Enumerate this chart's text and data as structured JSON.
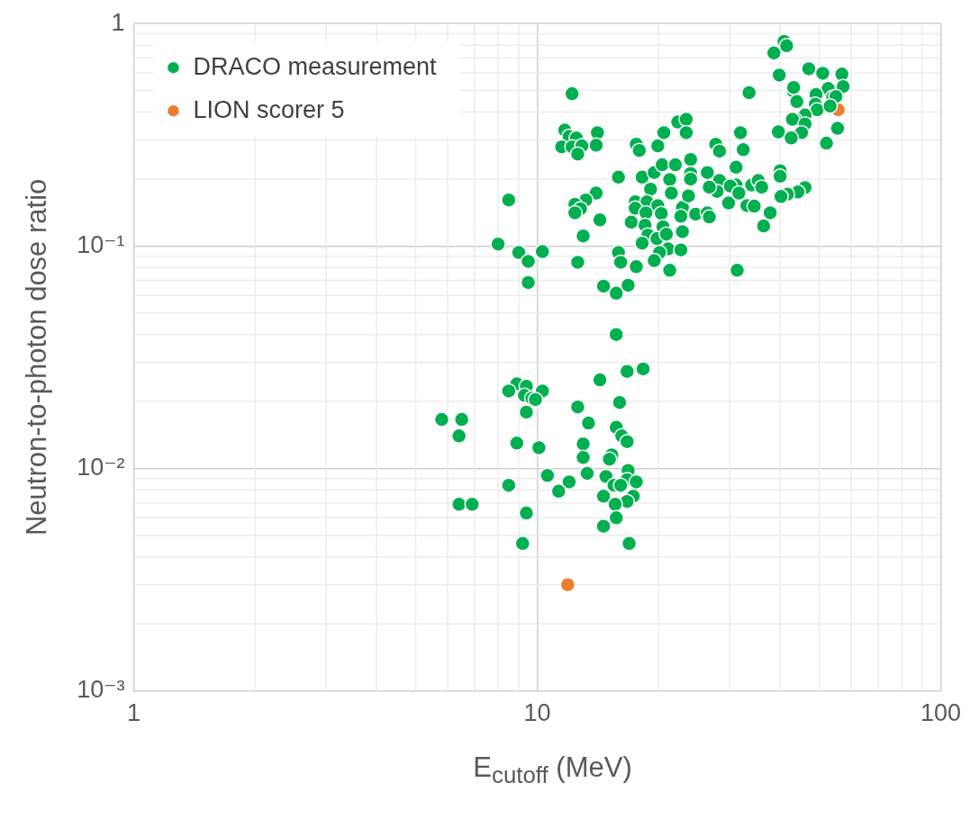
{
  "chart_data": {
    "type": "scatter",
    "xlabel": "E$_{cutoff}$ (MeV)",
    "ylabel": "Neutron-to-photon dose ratio",
    "log": "xy",
    "grid": true,
    "legend": "top left",
    "marker": "circle",
    "xlim": [
      1,
      100
    ],
    "xticks": [
      1,
      10,
      100
    ],
    "ylim": [
      0.001,
      1
    ],
    "yticks": [
      {
        "value": 0.001,
        "label": "10⁻³"
      },
      {
        "value": 0.01,
        "label": "10⁻²"
      },
      {
        "value": 0.1,
        "label": "10⁻¹"
      },
      1
    ],
    "series": [
      {
        "name": "DRACO measurement",
        "color": "#00b050",
        "x": [
          15.7,
          16.7,
          18.3,
          14.3,
          8.9,
          9.4,
          8.5,
          10.3,
          9.3,
          9.7,
          9.9,
          9.4,
          5.8,
          6.5,
          6.4,
          12.6,
          16.0,
          13.4,
          15.7,
          16.2,
          16.7,
          8.9,
          10.1,
          13.0,
          13.0,
          15.3,
          15.1,
          13.3,
          10.6,
          14.8,
          16.8,
          16.7,
          17.6,
          15.5,
          16.1,
          8.5,
          12.0,
          11.3,
          14.6,
          17.3,
          16.7,
          15.6,
          6.4,
          6.9,
          9.4,
          15.7,
          14.6,
          9.2,
          16.9,
          12.2,
          11.7,
          12.0,
          12.5,
          11.5,
          12.2,
          12.9,
          12.6,
          14.1,
          14.0,
          17.6,
          17.9,
          19.9,
          20.6,
          22.3,
          23.4,
          23.4,
          24.0,
          15.9,
          18.2,
          19.5,
          20.4,
          22.0,
          21.3,
          24.0,
          24.0,
          19.1,
          21.5,
          23.8,
          8.5,
          14.0,
          13.2,
          12.4,
          12.8,
          12.4,
          14.3,
          13.0,
          17.5,
          18.7,
          19.9,
          17.5,
          18.6,
          20.3,
          22.9,
          23.7,
          24.7,
          22.7,
          17.1,
          18.5,
          20.5,
          18.8,
          19.8,
          20.9,
          22.9,
          18.2,
          8.0,
          9.0,
          10.3,
          9.5,
          9.5,
          12.6,
          15.9,
          16.1,
          17.6,
          21.1,
          20.1,
          19.5,
          22.7,
          21.3,
          14.6,
          15.7,
          16.8,
          40.9,
          41.5,
          38.6,
          47.1,
          51.0,
          56.9,
          39.8,
          33.5,
          43.1,
          43.2,
          57.3,
          52.6,
          49.1,
          54.0,
          55.0,
          44.0,
          48.9,
          49.4,
          53.2,
          46.1,
          43.5,
          42.9,
          46.1,
          39.6,
          45.2,
          42.6,
          55.5,
          52.1,
          27.7,
          28.3,
          31.9,
          32.4,
          31.1,
          26.4,
          40.0,
          40.0,
          28.3,
          34.0,
          35.3,
          36.0,
          31.1,
          30.1,
          31.6,
          27.9,
          26.7,
          26.4,
          29.8,
          33.1,
          34.5,
          26.7,
          46.1,
          44.3,
          41.7,
          40.2,
          37.8,
          36.4,
          31.3
        ],
        "values": [
          0.04,
          0.0273,
          0.028,
          0.025,
          0.024,
          0.0234,
          0.0223,
          0.0223,
          0.0213,
          0.0207,
          0.0204,
          0.0179,
          0.0166,
          0.0166,
          0.014,
          0.0189,
          0.0198,
          0.016,
          0.0153,
          0.014,
          0.0132,
          0.013,
          0.0124,
          0.0129,
          0.0112,
          0.0115,
          0.011,
          0.0095,
          0.0093,
          0.0092,
          0.0098,
          0.0089,
          0.0087,
          0.0084,
          0.0084,
          0.0084,
          0.0087,
          0.0079,
          0.0075,
          0.0075,
          0.0071,
          0.0069,
          0.0069,
          0.0069,
          0.0063,
          0.006,
          0.0055,
          0.0046,
          0.0046,
          0.484,
          0.332,
          0.311,
          0.306,
          0.279,
          0.279,
          0.282,
          0.259,
          0.323,
          0.284,
          0.287,
          0.269,
          0.282,
          0.323,
          0.361,
          0.371,
          0.323,
          0.245,
          0.204,
          0.204,
          0.214,
          0.232,
          0.232,
          0.199,
          0.212,
          0.2,
          0.18,
          0.173,
          0.17,
          0.161,
          0.173,
          0.161,
          0.154,
          0.147,
          0.141,
          0.131,
          0.111,
          0.158,
          0.158,
          0.152,
          0.148,
          0.141,
          0.14,
          0.149,
          0.168,
          0.139,
          0.136,
          0.128,
          0.124,
          0.122,
          0.112,
          0.108,
          0.113,
          0.116,
          0.103,
          0.102,
          0.0935,
          0.0944,
          0.0853,
          0.0685,
          0.0845,
          0.0935,
          0.0845,
          0.0807,
          0.097,
          0.0935,
          0.086,
          0.096,
          0.0778,
          0.066,
          0.0613,
          0.0666,
          0.832,
          0.795,
          0.738,
          0.626,
          0.598,
          0.593,
          0.587,
          0.489,
          0.497,
          0.516,
          0.521,
          0.511,
          0.48,
          0.467,
          0.47,
          0.446,
          0.434,
          0.41,
          0.426,
          0.388,
          0.371,
          0.371,
          0.354,
          0.326,
          0.323,
          0.306,
          0.338,
          0.29,
          0.287,
          0.267,
          0.323,
          0.271,
          0.226,
          0.214,
          0.218,
          0.206,
          0.197,
          0.188,
          0.197,
          0.184,
          0.188,
          0.186,
          0.173,
          0.176,
          0.184,
          0.141,
          0.156,
          0.152,
          0.151,
          0.135,
          0.183,
          0.175,
          0.171,
          0.167,
          0.141,
          0.123,
          0.0778
        ]
      },
      {
        "name": "LION scorer 5",
        "color": "#ed7d31",
        "x": [
          11.9,
          55.7
        ],
        "values": [
          0.003,
          0.41
        ]
      }
    ]
  }
}
